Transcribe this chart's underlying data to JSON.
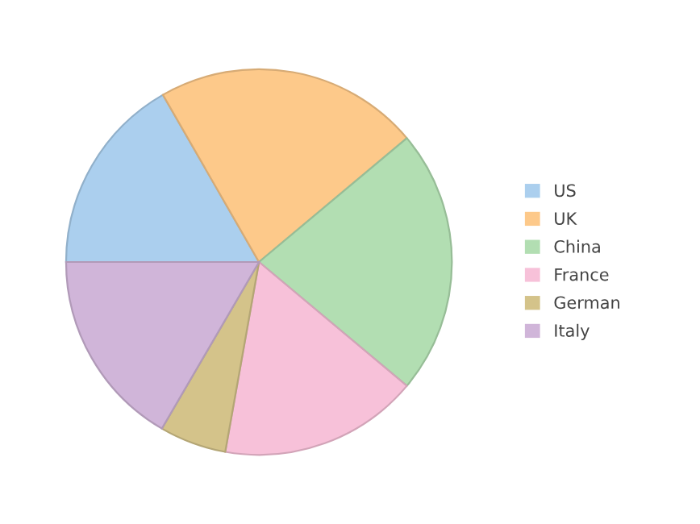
{
  "chart_data": {
    "type": "pie",
    "categories": [
      "US",
      "UK",
      "China",
      "France",
      "German",
      "Italy"
    ],
    "values": [
      16.7,
      22.2,
      22.2,
      16.7,
      5.6,
      16.6
    ],
    "colors": [
      "#abcfee",
      "#fdc98a",
      "#b2deb2",
      "#f7c1d9",
      "#d4c38a",
      "#d0b5d9"
    ],
    "legend": "right"
  }
}
